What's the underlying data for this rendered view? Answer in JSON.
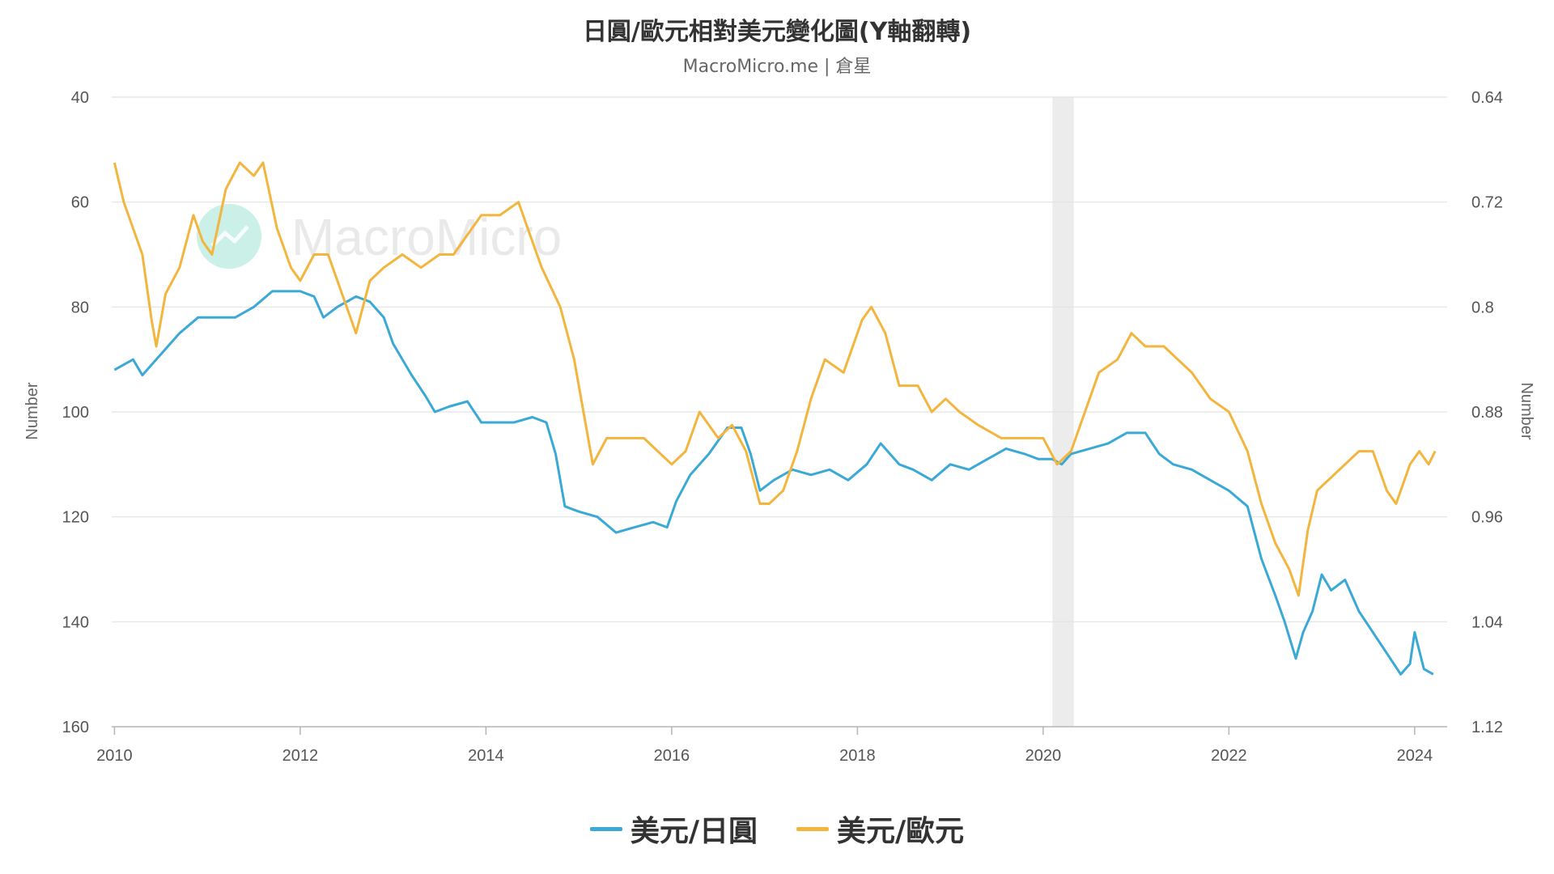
{
  "chart_data": {
    "type": "line",
    "title": "日圓/歐元相對美元變化圖(Y軸翻轉)",
    "subtitle": "MacroMicro.me | 倉星",
    "watermark": "MacroMicro",
    "x_ticks": [
      "2010",
      "2012",
      "2014",
      "2016",
      "2018",
      "2020",
      "2022",
      "2024"
    ],
    "xlim": [
      2009.97,
      2024.35
    ],
    "left_axis": {
      "label": "Number",
      "ticks": [
        "40",
        "60",
        "80",
        "100",
        "120",
        "140",
        "160"
      ],
      "range": [
        40,
        160
      ],
      "reversed": true
    },
    "right_axis": {
      "label": "Number",
      "ticks": [
        "0.64",
        "0.72",
        "0.8",
        "0.88",
        "0.96",
        "1.04",
        "1.12"
      ],
      "range": [
        0.64,
        1.12
      ],
      "reversed": true
    },
    "shaded_region": [
      2020.1,
      2020.33
    ],
    "grid": true,
    "legend_position": "bottom",
    "series": [
      {
        "name": "美元/日圓",
        "axis": "left",
        "color": "#3aa9d6",
        "points": [
          [
            2010.0,
            92
          ],
          [
            2010.2,
            90
          ],
          [
            2010.3,
            93
          ],
          [
            2010.5,
            89
          ],
          [
            2010.7,
            85
          ],
          [
            2010.9,
            82
          ],
          [
            2011.1,
            82
          ],
          [
            2011.3,
            82
          ],
          [
            2011.5,
            80
          ],
          [
            2011.7,
            77
          ],
          [
            2011.9,
            77
          ],
          [
            2012.0,
            77
          ],
          [
            2012.15,
            78
          ],
          [
            2012.25,
            82
          ],
          [
            2012.4,
            80
          ],
          [
            2012.6,
            78
          ],
          [
            2012.75,
            79
          ],
          [
            2012.9,
            82
          ],
          [
            2013.0,
            87
          ],
          [
            2013.2,
            93
          ],
          [
            2013.35,
            97
          ],
          [
            2013.45,
            100
          ],
          [
            2013.6,
            99
          ],
          [
            2013.8,
            98
          ],
          [
            2013.95,
            102
          ],
          [
            2014.1,
            102
          ],
          [
            2014.3,
            102
          ],
          [
            2014.5,
            101
          ],
          [
            2014.65,
            102
          ],
          [
            2014.75,
            108
          ],
          [
            2014.85,
            118
          ],
          [
            2015.0,
            119
          ],
          [
            2015.2,
            120
          ],
          [
            2015.4,
            123
          ],
          [
            2015.6,
            122
          ],
          [
            2015.8,
            121
          ],
          [
            2015.95,
            122
          ],
          [
            2016.05,
            117
          ],
          [
            2016.2,
            112
          ],
          [
            2016.4,
            108
          ],
          [
            2016.6,
            103
          ],
          [
            2016.75,
            103
          ],
          [
            2016.85,
            108
          ],
          [
            2016.95,
            115
          ],
          [
            2017.1,
            113
          ],
          [
            2017.3,
            111
          ],
          [
            2017.5,
            112
          ],
          [
            2017.7,
            111
          ],
          [
            2017.9,
            113
          ],
          [
            2018.1,
            110
          ],
          [
            2018.25,
            106
          ],
          [
            2018.45,
            110
          ],
          [
            2018.6,
            111
          ],
          [
            2018.8,
            113
          ],
          [
            2019.0,
            110
          ],
          [
            2019.2,
            111
          ],
          [
            2019.4,
            109
          ],
          [
            2019.6,
            107
          ],
          [
            2019.8,
            108
          ],
          [
            2019.95,
            109
          ],
          [
            2020.1,
            109
          ],
          [
            2020.2,
            110
          ],
          [
            2020.3,
            108
          ],
          [
            2020.5,
            107
          ],
          [
            2020.7,
            106
          ],
          [
            2020.9,
            104
          ],
          [
            2021.1,
            104
          ],
          [
            2021.25,
            108
          ],
          [
            2021.4,
            110
          ],
          [
            2021.6,
            111
          ],
          [
            2021.8,
            113
          ],
          [
            2022.0,
            115
          ],
          [
            2022.2,
            118
          ],
          [
            2022.35,
            128
          ],
          [
            2022.5,
            135
          ],
          [
            2022.6,
            140
          ],
          [
            2022.72,
            147
          ],
          [
            2022.8,
            142
          ],
          [
            2022.9,
            138
          ],
          [
            2023.0,
            131
          ],
          [
            2023.1,
            134
          ],
          [
            2023.25,
            132
          ],
          [
            2023.4,
            138
          ],
          [
            2023.55,
            142
          ],
          [
            2023.7,
            146
          ],
          [
            2023.85,
            150
          ],
          [
            2023.95,
            148
          ],
          [
            2024.0,
            142
          ],
          [
            2024.1,
            149
          ],
          [
            2024.2,
            150
          ]
        ]
      },
      {
        "name": "美元/歐元",
        "axis": "right",
        "color": "#f2b53d",
        "points": [
          [
            2010.0,
            0.69
          ],
          [
            2010.1,
            0.72
          ],
          [
            2010.2,
            0.74
          ],
          [
            2010.3,
            0.76
          ],
          [
            2010.4,
            0.81
          ],
          [
            2010.45,
            0.83
          ],
          [
            2010.55,
            0.79
          ],
          [
            2010.7,
            0.77
          ],
          [
            2010.85,
            0.73
          ],
          [
            2010.95,
            0.75
          ],
          [
            2011.05,
            0.76
          ],
          [
            2011.2,
            0.71
          ],
          [
            2011.35,
            0.69
          ],
          [
            2011.5,
            0.7
          ],
          [
            2011.6,
            0.69
          ],
          [
            2011.75,
            0.74
          ],
          [
            2011.9,
            0.77
          ],
          [
            2012.0,
            0.78
          ],
          [
            2012.15,
            0.76
          ],
          [
            2012.3,
            0.76
          ],
          [
            2012.45,
            0.79
          ],
          [
            2012.6,
            0.82
          ],
          [
            2012.75,
            0.78
          ],
          [
            2012.9,
            0.77
          ],
          [
            2013.1,
            0.76
          ],
          [
            2013.3,
            0.77
          ],
          [
            2013.5,
            0.76
          ],
          [
            2013.65,
            0.76
          ],
          [
            2013.85,
            0.74
          ],
          [
            2013.95,
            0.73
          ],
          [
            2014.15,
            0.73
          ],
          [
            2014.35,
            0.72
          ],
          [
            2014.45,
            0.74
          ],
          [
            2014.6,
            0.77
          ],
          [
            2014.8,
            0.8
          ],
          [
            2014.95,
            0.84
          ],
          [
            2015.05,
            0.88
          ],
          [
            2015.15,
            0.92
          ],
          [
            2015.3,
            0.9
          ],
          [
            2015.5,
            0.9
          ],
          [
            2015.7,
            0.9
          ],
          [
            2015.85,
            0.91
          ],
          [
            2016.0,
            0.92
          ],
          [
            2016.15,
            0.91
          ],
          [
            2016.3,
            0.88
          ],
          [
            2016.5,
            0.9
          ],
          [
            2016.65,
            0.89
          ],
          [
            2016.8,
            0.91
          ],
          [
            2016.95,
            0.95
          ],
          [
            2017.05,
            0.95
          ],
          [
            2017.2,
            0.94
          ],
          [
            2017.35,
            0.91
          ],
          [
            2017.5,
            0.87
          ],
          [
            2017.65,
            0.84
          ],
          [
            2017.85,
            0.85
          ],
          [
            2018.05,
            0.81
          ],
          [
            2018.15,
            0.8
          ],
          [
            2018.3,
            0.82
          ],
          [
            2018.45,
            0.86
          ],
          [
            2018.65,
            0.86
          ],
          [
            2018.8,
            0.88
          ],
          [
            2018.95,
            0.87
          ],
          [
            2019.1,
            0.88
          ],
          [
            2019.3,
            0.89
          ],
          [
            2019.55,
            0.9
          ],
          [
            2019.7,
            0.9
          ],
          [
            2019.85,
            0.9
          ],
          [
            2020.0,
            0.9
          ],
          [
            2020.15,
            0.92
          ],
          [
            2020.3,
            0.91
          ],
          [
            2020.45,
            0.88
          ],
          [
            2020.6,
            0.85
          ],
          [
            2020.8,
            0.84
          ],
          [
            2020.95,
            0.82
          ],
          [
            2021.1,
            0.83
          ],
          [
            2021.3,
            0.83
          ],
          [
            2021.45,
            0.84
          ],
          [
            2021.6,
            0.85
          ],
          [
            2021.8,
            0.87
          ],
          [
            2022.0,
            0.88
          ],
          [
            2022.2,
            0.91
          ],
          [
            2022.35,
            0.95
          ],
          [
            2022.5,
            0.98
          ],
          [
            2022.65,
            1.0
          ],
          [
            2022.75,
            1.02
          ],
          [
            2022.85,
            0.97
          ],
          [
            2022.95,
            0.94
          ],
          [
            2023.1,
            0.93
          ],
          [
            2023.25,
            0.92
          ],
          [
            2023.4,
            0.91
          ],
          [
            2023.55,
            0.91
          ],
          [
            2023.7,
            0.94
          ],
          [
            2023.8,
            0.95
          ],
          [
            2023.95,
            0.92
          ],
          [
            2024.05,
            0.91
          ],
          [
            2024.15,
            0.92
          ],
          [
            2024.22,
            0.91
          ]
        ]
      }
    ]
  }
}
